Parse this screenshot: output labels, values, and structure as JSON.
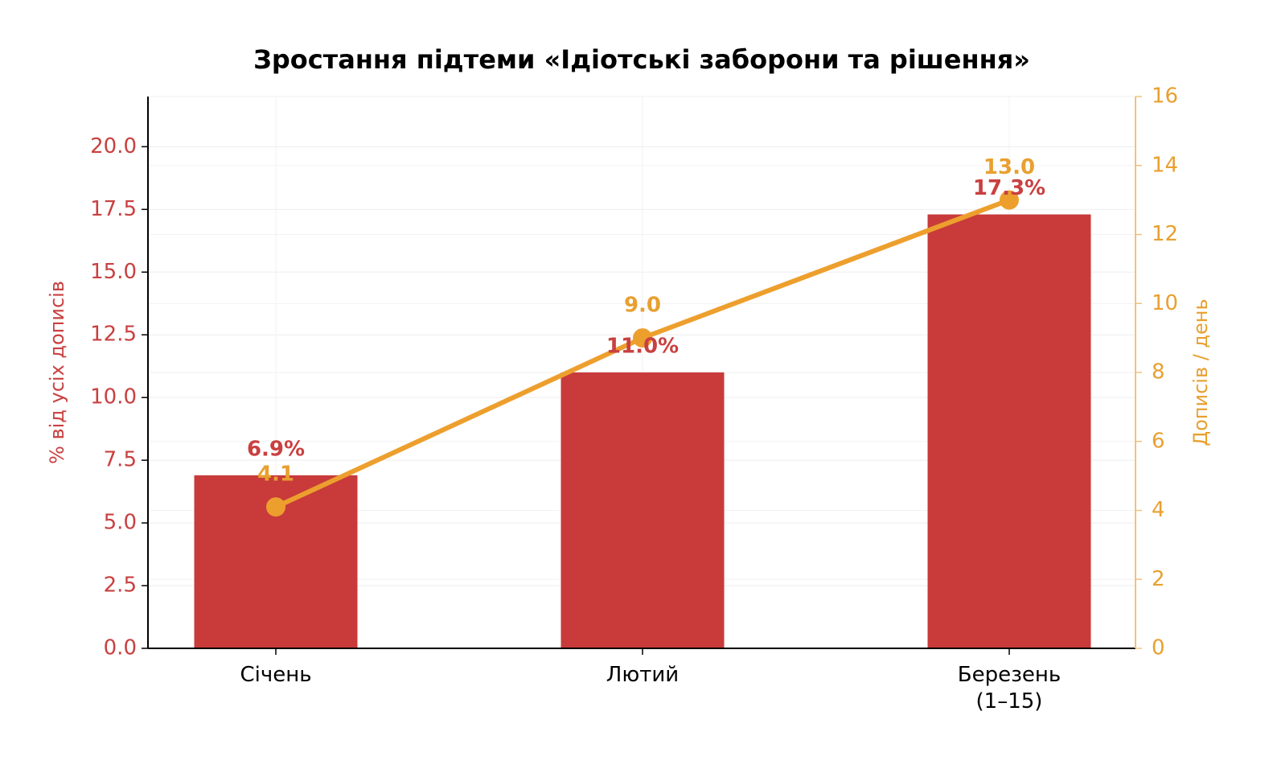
{
  "chart_data": {
    "type": "bar-line",
    "title": "Зростання підтеми «Ідіотські заборони та рішення»",
    "categories": [
      "Січень",
      "Лютий",
      "Березень\n(1–15)"
    ],
    "ylabel": "% від усіх дописів",
    "y2label": "Дописів / день",
    "ylim": [
      0,
      22
    ],
    "yticks": [
      {
        "value": 0,
        "label": "0.0"
      },
      {
        "value": 2.5,
        "label": "2.5"
      },
      {
        "value": 5,
        "label": "5.0"
      },
      {
        "value": 7.5,
        "label": "7.5"
      },
      {
        "value": 10,
        "label": "10.0"
      },
      {
        "value": 12.5,
        "label": "12.5"
      },
      {
        "value": 15,
        "label": "15.0"
      },
      {
        "value": 17.5,
        "label": "17.5"
      },
      {
        "value": 20,
        "label": "20.0"
      }
    ],
    "y2lim": [
      0,
      16
    ],
    "y2ticks": [
      0,
      2,
      4,
      6,
      8,
      10,
      12,
      14,
      16
    ],
    "grid": true,
    "series": [
      {
        "type": "bar",
        "color": "#c83b3a",
        "values": [
          6.9,
          11.0,
          17.3
        ],
        "value_labels": [
          "6.9%",
          "11.0%",
          "17.3%"
        ]
      },
      {
        "type": "line",
        "axis": "y2",
        "color": "#ed9f2e",
        "values": [
          4.1,
          9.0,
          13.0
        ],
        "value_labels": [
          "4.1",
          "9.0",
          "13.0"
        ]
      }
    ]
  }
}
